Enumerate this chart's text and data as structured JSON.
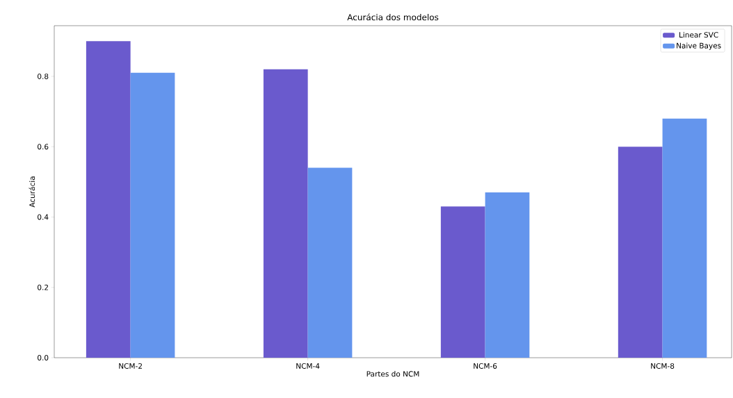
{
  "chart_data": {
    "type": "bar",
    "title": "Acurácia dos modelos",
    "xlabel": "Partes do NCM",
    "ylabel": "Acurácia",
    "categories": [
      "NCM-2",
      "NCM-4",
      "NCM-6",
      "NCM-8"
    ],
    "series": [
      {
        "name": "Linear SVC",
        "color": "#6a5acd",
        "values": [
          0.9,
          0.82,
          0.43,
          0.6
        ]
      },
      {
        "name": "Naive Bayes",
        "color": "#6495ed",
        "values": [
          0.81,
          0.54,
          0.47,
          0.68
        ]
      }
    ],
    "ylim": [
      0,
      0.944
    ],
    "yticks": [
      {
        "value": 0,
        "label": "0.0"
      },
      {
        "value": 0.2,
        "label": "0.2"
      },
      {
        "value": 0.4,
        "label": "0.4"
      },
      {
        "value": 0.6,
        "label": "0.6"
      },
      {
        "value": 0.8,
        "label": "0.8"
      }
    ],
    "legend": "top right",
    "grid": false
  }
}
